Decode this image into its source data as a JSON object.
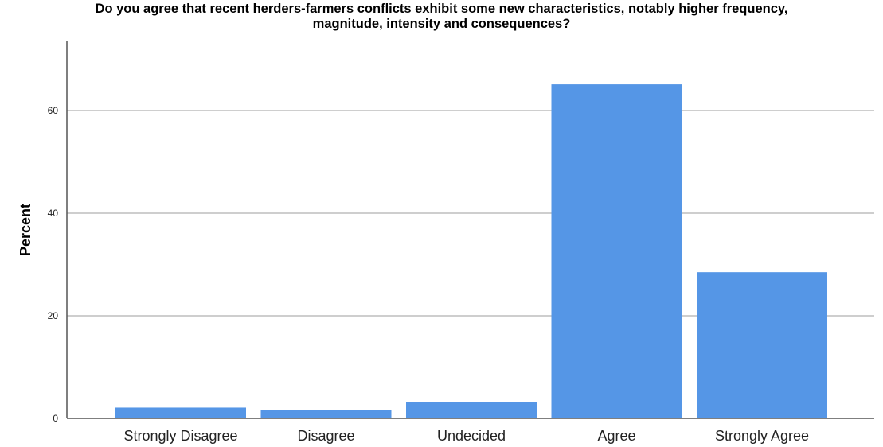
{
  "chart_data": {
    "type": "bar",
    "title_lines": [
      "Do you agree that recent herders-farmers conflicts exhibit some new characteristics, notably higher frequency,",
      "magnitude, intensity and consequences?"
    ],
    "xlabel": "",
    "ylabel": "Percent",
    "categories": [
      "Strongly Disagree",
      "Disagree",
      "Undecided",
      "Agree",
      "Strongly Agree"
    ],
    "values": [
      2.1,
      1.6,
      3.1,
      65.1,
      28.5
    ],
    "ylim": [
      0,
      74
    ],
    "yticks": [
      0,
      20,
      40,
      60
    ],
    "bar_color": "#5596e6",
    "gridlines": true
  }
}
